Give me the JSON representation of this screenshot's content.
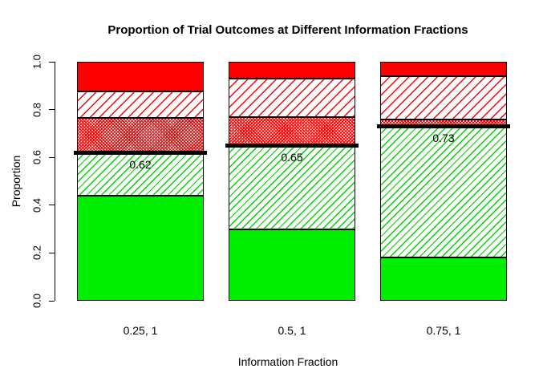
{
  "title": "Proportion of Trial Outcomes at Different Information Fractions",
  "y_axis": {
    "label": "Proportion",
    "ticks": [
      "0.0",
      "0.2",
      "0.4",
      "0.6",
      "0.8",
      "1.0"
    ]
  },
  "x_axis": {
    "label": "Information Fraction",
    "categories": [
      "0.25, 1",
      "0.5, 1",
      "0.75, 1"
    ]
  },
  "chart_data": {
    "type": "bar",
    "stacked": true,
    "title": "Proportion of Trial Outcomes at Different Information Fractions",
    "xlabel": "Information Fraction",
    "ylabel": "Proportion",
    "ylim": [
      0,
      1
    ],
    "grid": false,
    "legend_position": "none",
    "categories": [
      "0.25, 1",
      "0.5, 1",
      "0.75, 1"
    ],
    "series": [
      {
        "name": "solid-green-bottom",
        "style": "green-solid",
        "color": "#00ee00",
        "hatch": "none",
        "values": [
          0.44,
          0.3,
          0.18
        ]
      },
      {
        "name": "green-diagonal-hatch",
        "style": "green-hatch",
        "color": "#00d400",
        "hatch": "diagonal-45",
        "values": [
          0.18,
          0.35,
          0.55
        ]
      },
      {
        "name": "red-dense-crosshatch",
        "style": "red-dense",
        "color": "#ff0000",
        "hatch": "dense-cross",
        "values": [
          0.145,
          0.12,
          0.03
        ]
      },
      {
        "name": "red-diagonal-hatch",
        "style": "red-sparse",
        "color": "#ff0000",
        "hatch": "diagonal-45",
        "values": [
          0.11,
          0.16,
          0.18
        ]
      },
      {
        "name": "solid-red-top",
        "style": "red-solid",
        "color": "#ff0000",
        "hatch": "none",
        "values": [
          0.125,
          0.07,
          0.06
        ]
      }
    ],
    "cumulative_line": {
      "color": "#000000",
      "values": [
        0.62,
        0.65,
        0.73
      ],
      "labels": [
        "0.62",
        "0.65",
        "0.73"
      ]
    }
  }
}
